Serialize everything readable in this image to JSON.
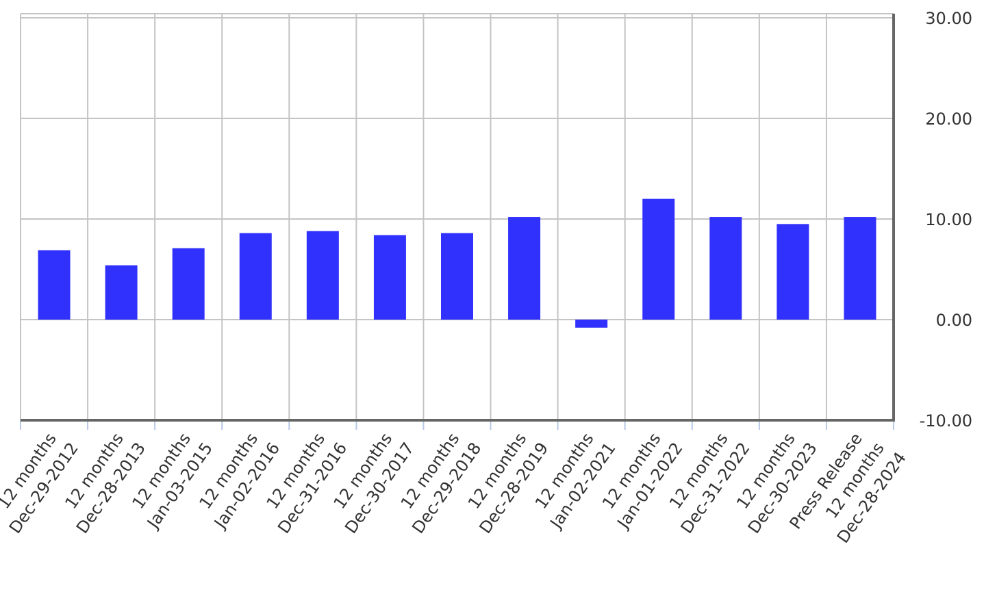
{
  "chart_data": {
    "type": "bar",
    "categories": [
      [
        "12 months",
        "Dec-29-2012"
      ],
      [
        "12 months",
        "Dec-28-2013"
      ],
      [
        "12 months",
        "Jan-03-2015"
      ],
      [
        "12 months",
        "Jan-02-2016"
      ],
      [
        "12 months",
        "Dec-31-2016"
      ],
      [
        "12 months",
        "Dec-30-2017"
      ],
      [
        "12 months",
        "Dec-29-2018"
      ],
      [
        "12 months",
        "Dec-28-2019"
      ],
      [
        "12 months",
        "Jan-02-2021"
      ],
      [
        "12 months",
        "Jan-01-2022"
      ],
      [
        "12 months",
        "Dec-31-2022"
      ],
      [
        "12 months",
        "Dec-30-2023"
      ],
      [
        "Press Release",
        "12 months",
        "Dec-28-2024"
      ]
    ],
    "values": [
      6.9,
      5.4,
      7.1,
      8.6,
      8.8,
      8.4,
      8.6,
      10.2,
      -0.8,
      12.0,
      10.2,
      9.5,
      10.2
    ],
    "color": "#3131fd",
    "ylim": [
      -10,
      30
    ],
    "yticks": [
      {
        "value": -10,
        "label": "-10.00"
      },
      {
        "value": 0,
        "label": "0.00"
      },
      {
        "value": 10,
        "label": "10.00"
      },
      {
        "value": 20,
        "label": "20.00"
      },
      {
        "value": 30,
        "label": "30.00"
      }
    ],
    "y_axis_side": "right",
    "grid": true
  }
}
